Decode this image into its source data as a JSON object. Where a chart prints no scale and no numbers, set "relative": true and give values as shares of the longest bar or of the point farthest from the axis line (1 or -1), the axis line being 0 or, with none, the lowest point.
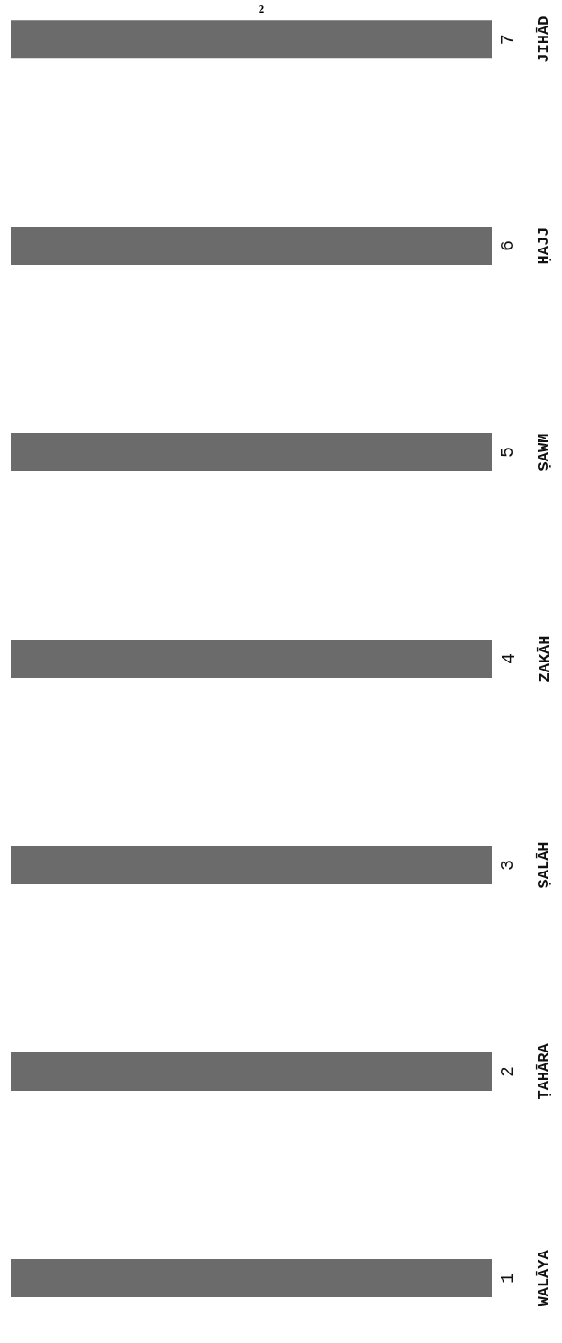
{
  "chart_data": {
    "type": "bar",
    "orientation": "horizontal",
    "relative": true,
    "categories": [
      "JIHĀD",
      "ḤAJJ",
      "ṢAWM",
      "ZAKĀH",
      "ṢALĀH",
      "ṬAHĀRA",
      "WALĀYA"
    ],
    "values": [
      1,
      1,
      1,
      1,
      1,
      1,
      1
    ],
    "color": "#6b6b6b",
    "annotations": [
      "7",
      "6",
      "5",
      "4",
      "3",
      "2",
      "1",
      "2"
    ],
    "grid": false,
    "legend": false
  }
}
